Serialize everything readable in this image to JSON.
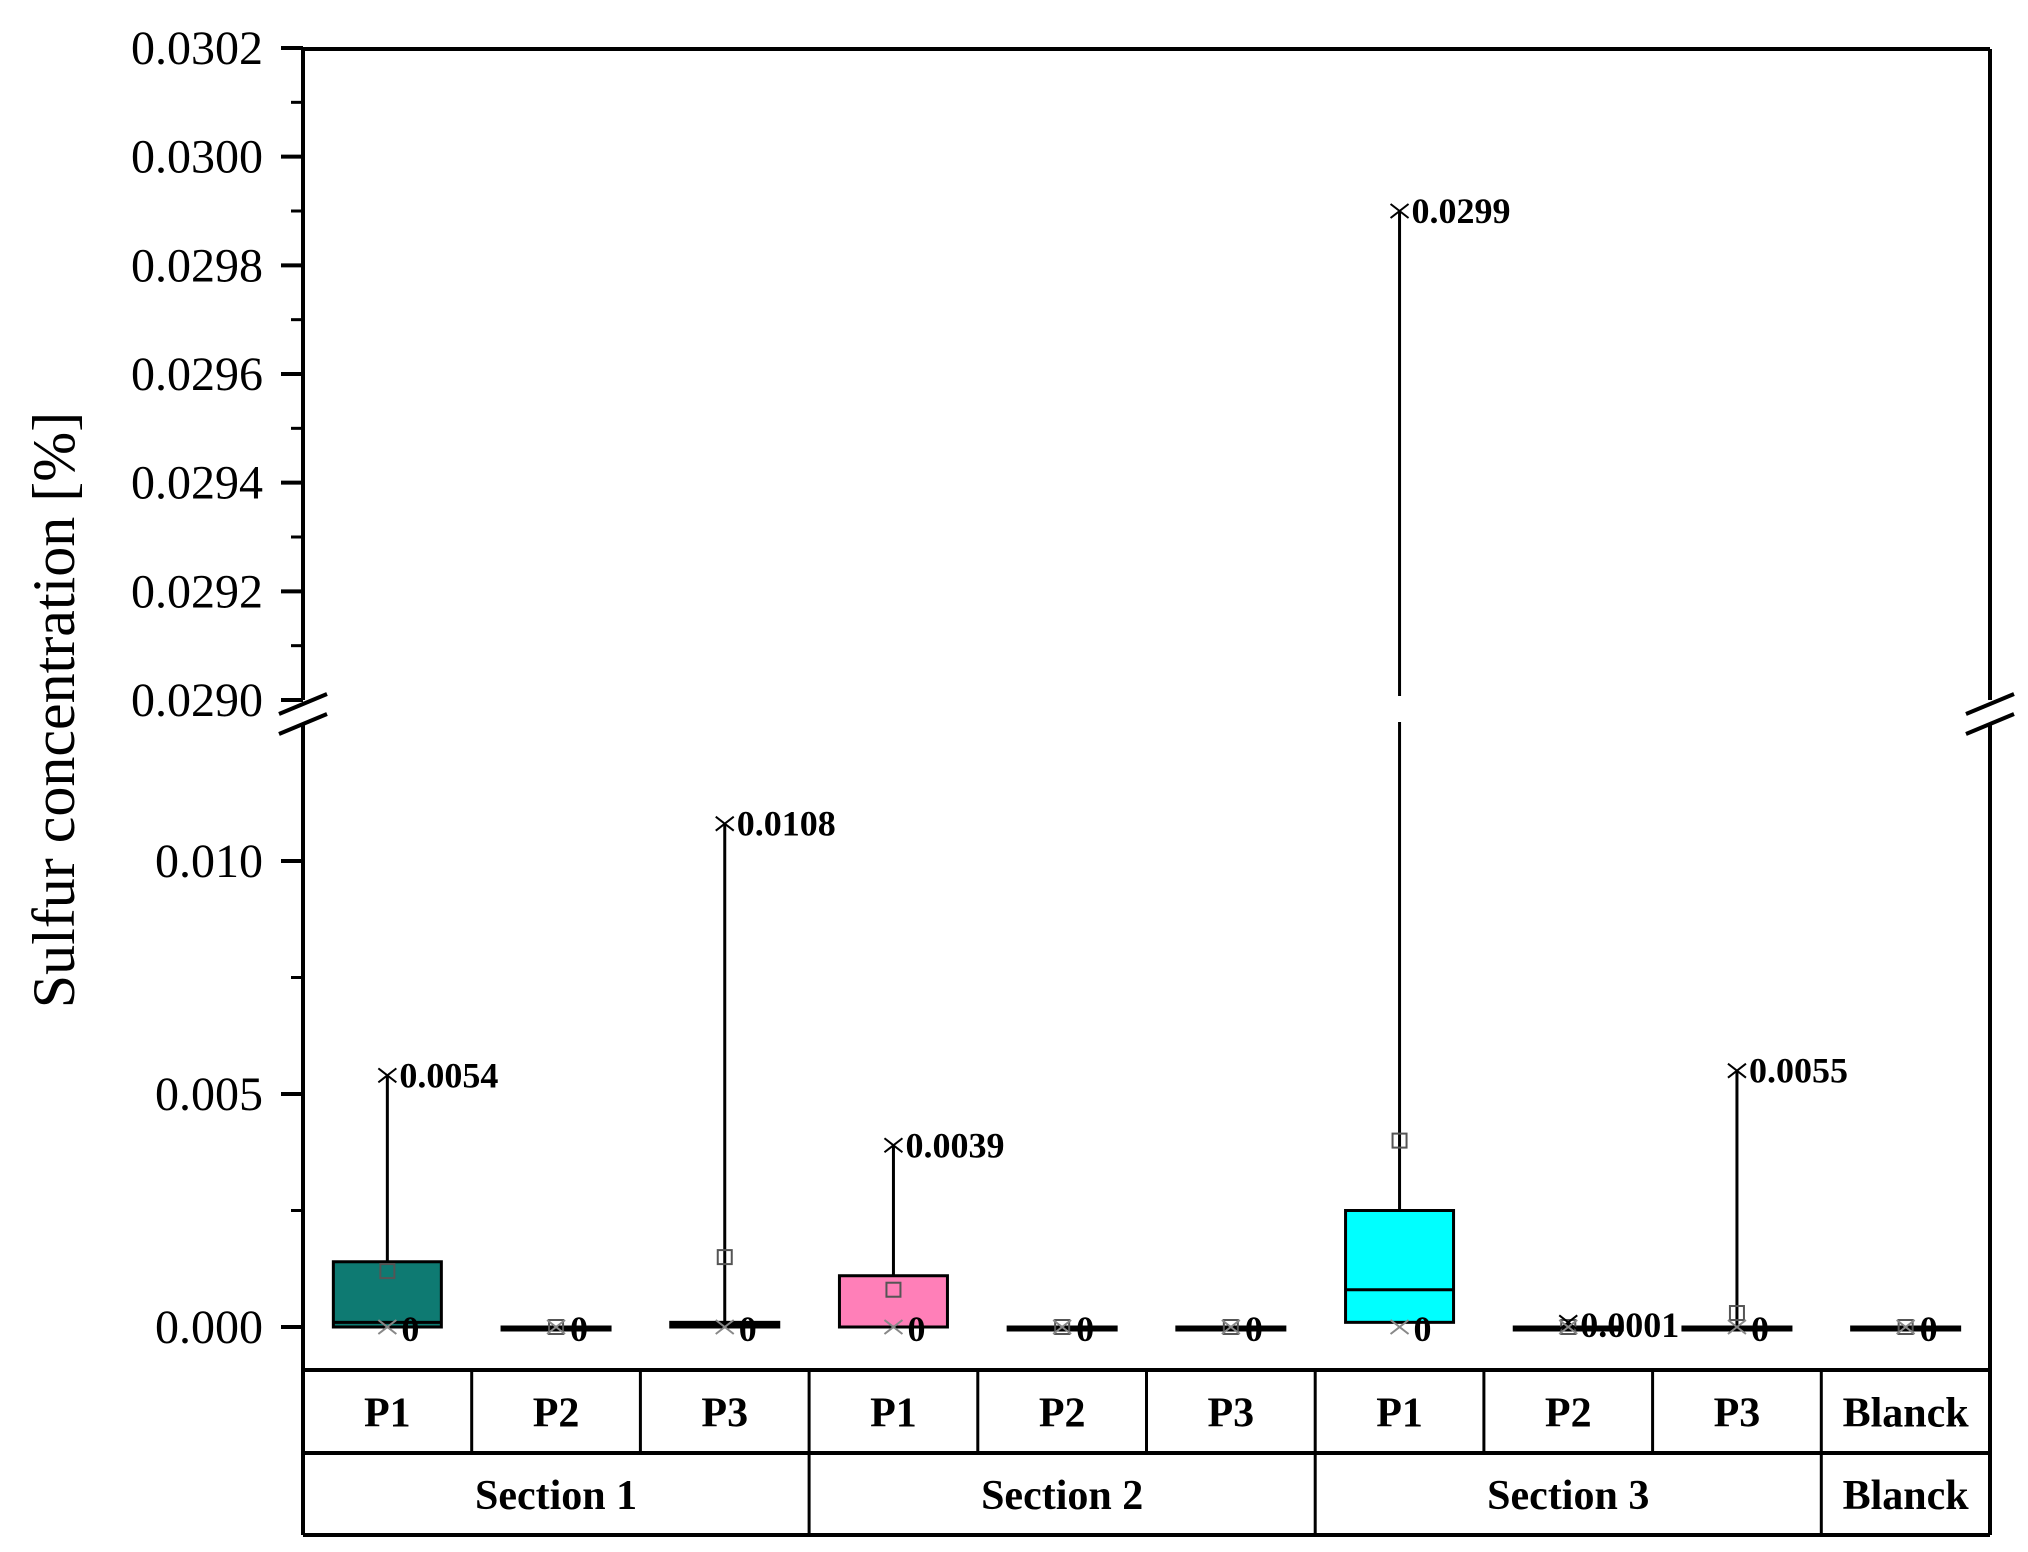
{
  "chart_data": {
    "type": "box",
    "ylabel": "Sulfur concentration [%]",
    "y_axis_break": [
      0.0123,
      0.029
    ],
    "ylim_lower": [
      -0.001,
      0.0123
    ],
    "ylim_upper": [
      0.029,
      0.0302
    ],
    "yticks_lower": [
      "0.000",
      "0.005",
      "0.010"
    ],
    "yticks_upper": [
      "0.0290",
      "0.0292",
      "0.0294",
      "0.0296",
      "0.0298",
      "0.0300",
      "0.0302"
    ],
    "yticks_lower_values": [
      0.0,
      0.005,
      0.01
    ],
    "yticks_upper_values": [
      0.029,
      0.0292,
      0.0294,
      0.0296,
      0.0298,
      0.03,
      0.0302
    ],
    "groups": [
      {
        "label": "Section 1",
        "span": 3
      },
      {
        "label": "Section 2",
        "span": 3
      },
      {
        "label": "Section 3",
        "span": 3
      },
      {
        "label": "Blanck",
        "span": 1
      }
    ],
    "boxes": [
      {
        "label": "P1",
        "group": "Section 1",
        "color": "#0e7a72",
        "min": 0,
        "q1": 0.0,
        "median": 0.0001,
        "q3": 0.0014,
        "max": 0.0054,
        "mean": 0.0012,
        "max_label": "0.0054",
        "min_label": "0"
      },
      {
        "label": "P2",
        "group": "Section 1",
        "color": "#0e7a72",
        "min": 0,
        "q1": 0,
        "median": 0,
        "q3": 0,
        "max": 0,
        "mean": 0,
        "max_label": "",
        "min_label": "0"
      },
      {
        "label": "P3",
        "group": "Section 1",
        "color": "#0e7a72",
        "min": 0,
        "q1": 0.0,
        "median": 5e-05,
        "q3": 0.0001,
        "max": 0.0108,
        "mean": 0.0015,
        "max_label": "0.0108",
        "min_label": "0"
      },
      {
        "label": "P1",
        "group": "Section 2",
        "color": "#ff7fb8",
        "min": 0,
        "q1": 0,
        "median": 0,
        "q3": 0.0011,
        "max": 0.0039,
        "mean": 0.0008,
        "max_label": "0.0039",
        "min_label": "0"
      },
      {
        "label": "P2",
        "group": "Section 2",
        "color": "#ff7fb8",
        "min": 0,
        "q1": 0,
        "median": 0,
        "q3": 0,
        "max": 0,
        "mean": 0,
        "max_label": "",
        "min_label": "0"
      },
      {
        "label": "P3",
        "group": "Section 2",
        "color": "#ff7fb8",
        "min": 0,
        "q1": 0,
        "median": 0,
        "q3": 0,
        "max": 0,
        "mean": 0,
        "max_label": "",
        "min_label": "0"
      },
      {
        "label": "P1",
        "group": "Section 3",
        "color": "#00ffff",
        "min": 0,
        "q1": 0.0001,
        "median": 0.0008,
        "q3": 0.0025,
        "max": 0.0299,
        "mean": 0.004,
        "max_label": "0.0299",
        "min_label": "0"
      },
      {
        "label": "P2",
        "group": "Section 3",
        "color": "#00ffff",
        "min": 0,
        "q1": 0,
        "median": 0,
        "q3": 0,
        "max": 0.0001,
        "mean": 0,
        "max_label": "0.0001",
        "min_label": ""
      },
      {
        "label": "P3",
        "group": "Section 3",
        "color": "#00ffff",
        "min": 0,
        "q1": 0,
        "median": 0,
        "q3": 0,
        "max": 0.0055,
        "mean": 0.0003,
        "max_label": "0.0055",
        "min_label": "0"
      },
      {
        "label": "Blanck",
        "group": "Blanck",
        "color": "#ffffff",
        "min": 0,
        "q1": 0,
        "median": 0,
        "q3": 0,
        "max": 0,
        "mean": 0,
        "max_label": "",
        "min_label": "0"
      }
    ]
  }
}
